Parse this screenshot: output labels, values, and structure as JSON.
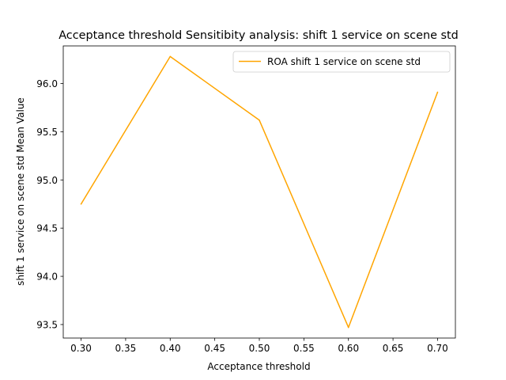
{
  "chart_data": {
    "type": "line",
    "title": "Acceptance threshold Sensitibity analysis: shift 1 service on scene std",
    "xlabel": "Acceptance threshold",
    "ylabel": "shift 1 service on scene std Mean Value",
    "x": [
      0.3,
      0.4,
      0.5,
      0.6,
      0.7
    ],
    "series": [
      {
        "name": "ROA shift 1 service on scene std",
        "color": "#ffa500",
        "values": [
          94.75,
          96.28,
          95.62,
          93.47,
          95.91
        ]
      }
    ],
    "xlim": [
      0.28,
      0.72
    ],
    "ylim": [
      93.36,
      96.39
    ],
    "xticks": [
      "0.30",
      "0.35",
      "0.40",
      "0.45",
      "0.50",
      "0.55",
      "0.60",
      "0.65",
      "0.70"
    ],
    "yticks": [
      "93.5",
      "94.0",
      "94.5",
      "95.0",
      "95.5",
      "96.0"
    ],
    "grid": false,
    "legend": "top-right"
  }
}
